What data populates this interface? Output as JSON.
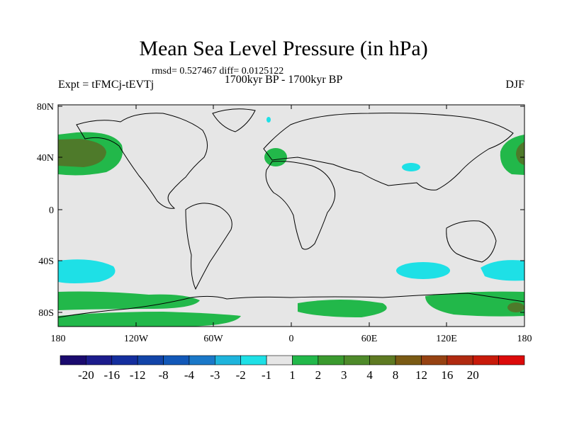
{
  "title": "Mean Sea Level Pressure (in hPa)",
  "stats": "rmsd= 0.527467 diff= 0.0125122",
  "period": "1700kyr BP - 1700kyr BP",
  "experiment": "Expt = tFMCj-tEVTj",
  "season": "DJF",
  "lat_ticks": [
    "80N",
    "40N",
    "0",
    "40S",
    "80S"
  ],
  "lon_ticks": [
    "180",
    "120W",
    "60W",
    "0",
    "60E",
    "120E",
    "180"
  ],
  "colorbar_labels": [
    "-20",
    "-16",
    "-12",
    "-8",
    "-4",
    "-3",
    "-2",
    "-1",
    "1",
    "2",
    "3",
    "4",
    "8",
    "12",
    "16",
    "20"
  ],
  "colorbar_colors": [
    "#1a0a6e",
    "#1c1c8c",
    "#142e9e",
    "#1244a8",
    "#1258b8",
    "#1a78c8",
    "#1eb4dc",
    "#1ee0e6",
    "#e6e6e6",
    "#22b84a",
    "#3a9a2e",
    "#4e8a2a",
    "#5e7a22",
    "#7a5a14",
    "#964212",
    "#b02a10",
    "#c81a0a",
    "#dc0a0a"
  ],
  "colors": {
    "background": "#e6e6e6",
    "pos_weak": "#22b84a",
    "pos_strong": "#4e7a2a",
    "neg_weak": "#1ee0e6"
  }
}
